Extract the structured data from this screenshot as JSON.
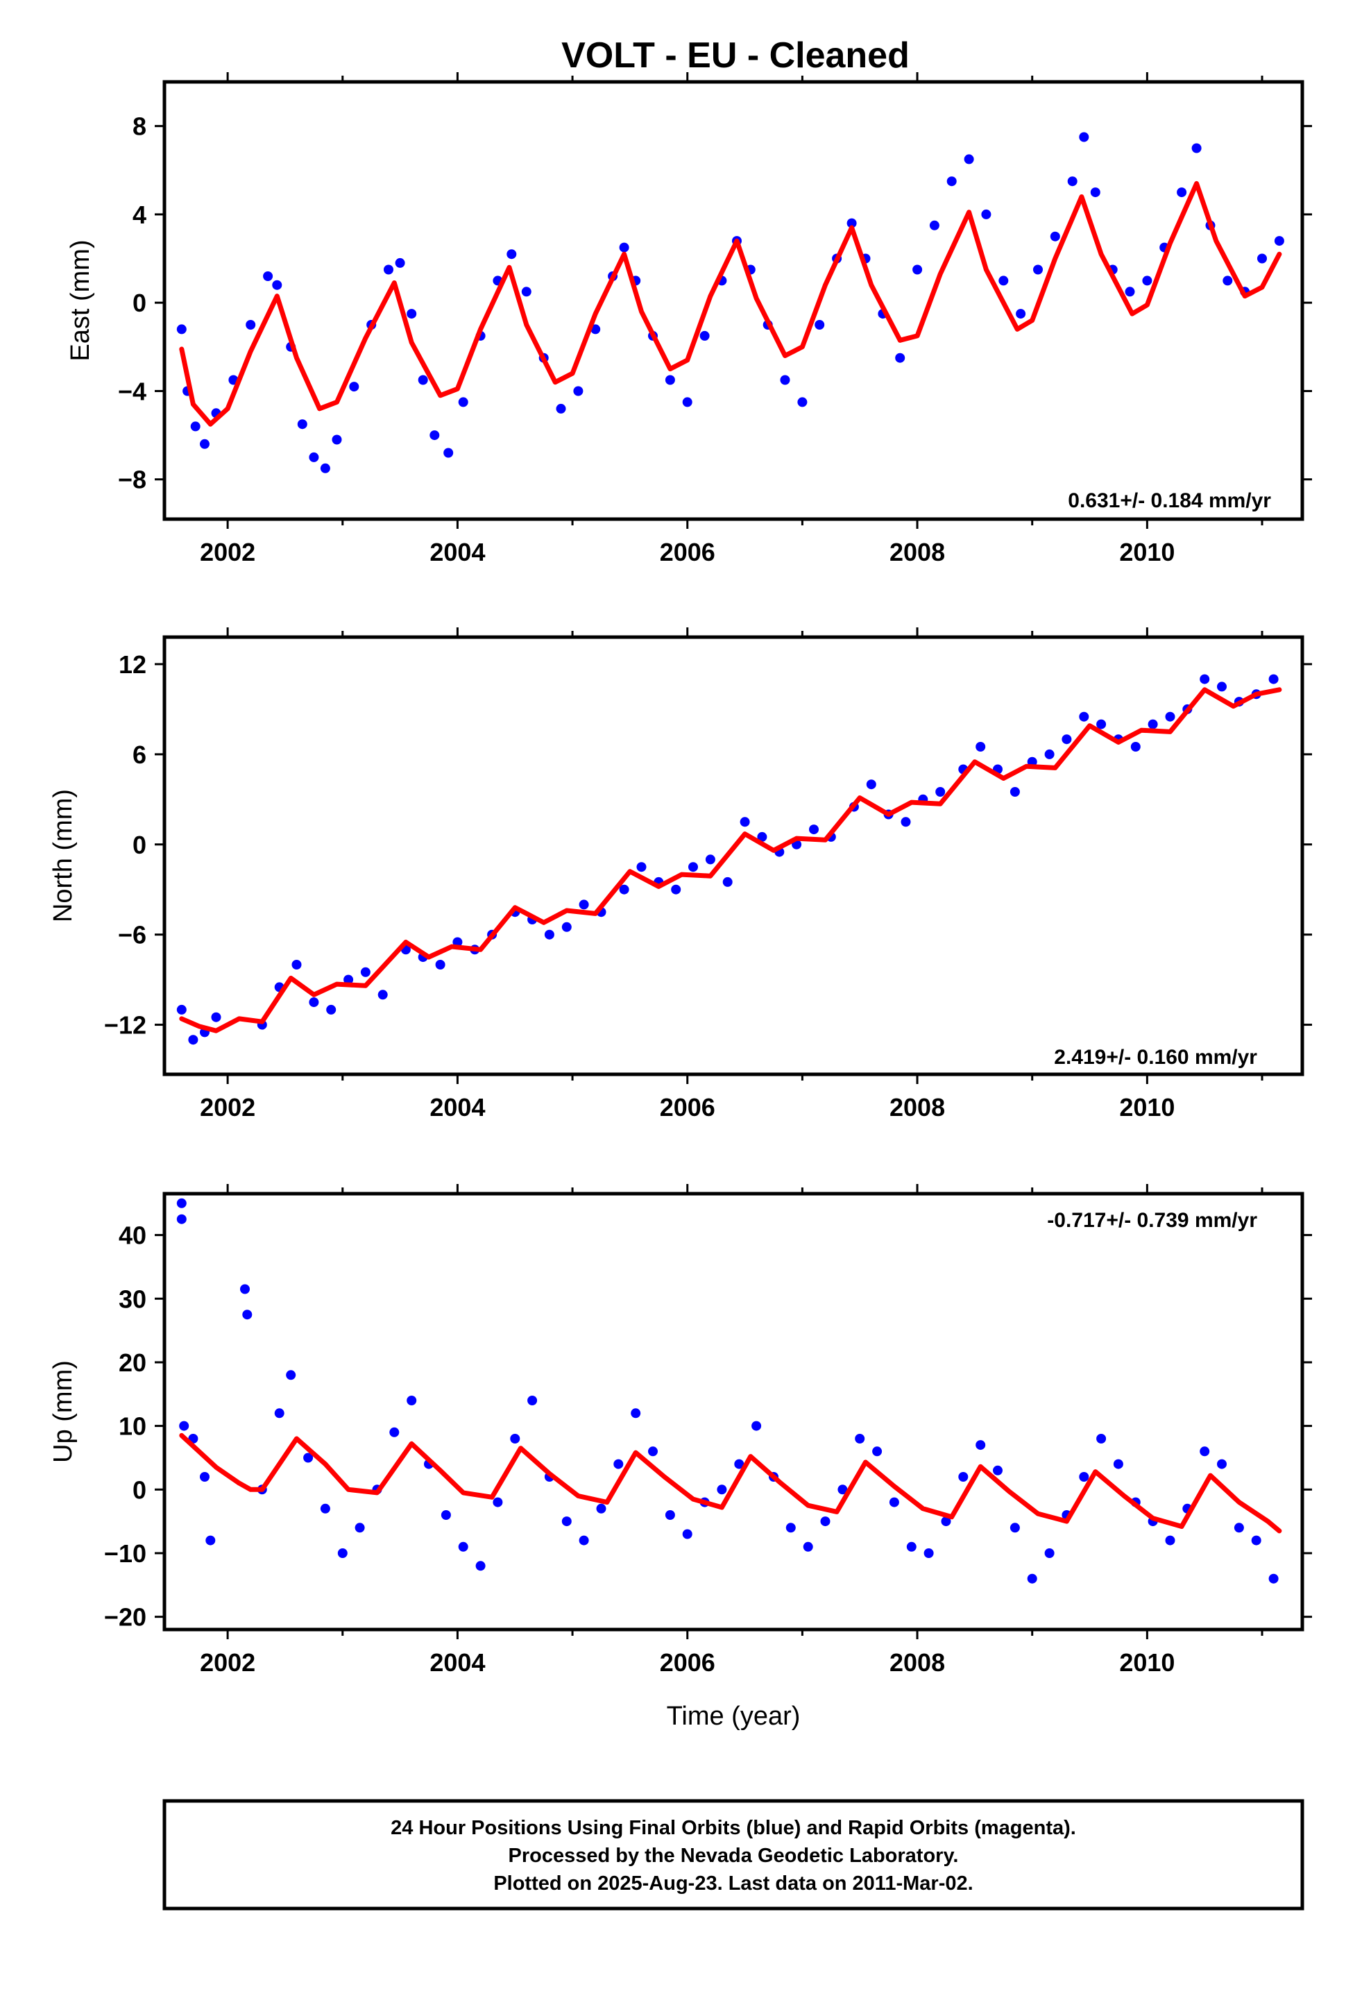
{
  "title": "VOLT  - EU - Cleaned",
  "colors": {
    "points": "#0000ff",
    "model": "#ff0000",
    "frame": "#000000"
  },
  "x_axis": {
    "label": "Time (year)",
    "ticks": [
      2002,
      2004,
      2006,
      2008,
      2010
    ],
    "xlim": [
      2001.45,
      2011.35
    ]
  },
  "chart_data": [
    {
      "type": "scatter",
      "panel": "east",
      "ylabel": "East (mm)",
      "yticks": [
        "8",
        "4",
        "0",
        "−4",
        "−8"
      ],
      "ytick_values": [
        8,
        4,
        0,
        -4,
        -8
      ],
      "ylim": [
        -9.8,
        10.0
      ],
      "rate_label": "0.631+/- 0.184 mm/yr",
      "rate_position": "bottom-right",
      "series": [
        {
          "kind": "model",
          "x": [
            2001.6,
            2001.7,
            2001.85,
            2002.0,
            2002.2,
            2002.43,
            2002.6,
            2002.8,
            2002.95,
            2003.2,
            2003.45,
            2003.6,
            2003.85,
            2004.0,
            2004.2,
            2004.45,
            2004.6,
            2004.85,
            2005.0,
            2005.2,
            2005.45,
            2005.6,
            2005.85,
            2006.0,
            2006.2,
            2006.43,
            2006.6,
            2006.85,
            2007.0,
            2007.2,
            2007.43,
            2007.6,
            2007.85,
            2008.0,
            2008.2,
            2008.45,
            2008.6,
            2008.87,
            2009.0,
            2009.2,
            2009.43,
            2009.6,
            2009.87,
            2010.0,
            2010.2,
            2010.43,
            2010.6,
            2010.85,
            2011.0,
            2011.15
          ],
          "y": [
            -2.1,
            -4.6,
            -5.5,
            -4.8,
            -2.2,
            0.3,
            -2.5,
            -4.8,
            -4.5,
            -1.6,
            0.9,
            -1.8,
            -4.2,
            -3.9,
            -1.2,
            1.6,
            -1.0,
            -3.6,
            -3.2,
            -0.5,
            2.2,
            -0.4,
            -3.0,
            -2.6,
            0.3,
            2.8,
            0.2,
            -2.4,
            -2.0,
            0.8,
            3.4,
            0.8,
            -1.7,
            -1.5,
            1.3,
            4.1,
            1.5,
            -1.2,
            -0.8,
            2.0,
            4.8,
            2.2,
            -0.5,
            -0.1,
            2.7,
            5.4,
            2.8,
            0.3,
            0.7,
            2.2
          ]
        },
        {
          "kind": "observations",
          "x": [
            2001.6,
            2001.65,
            2001.72,
            2001.8,
            2001.9,
            2002.05,
            2002.2,
            2002.35,
            2002.43,
            2002.55,
            2002.65,
            2002.75,
            2002.85,
            2002.95,
            2003.1,
            2003.25,
            2003.4,
            2003.5,
            2003.6,
            2003.7,
            2003.8,
            2003.92,
            2004.05,
            2004.2,
            2004.35,
            2004.47,
            2004.6,
            2004.75,
            2004.9,
            2005.05,
            2005.2,
            2005.35,
            2005.45,
            2005.55,
            2005.7,
            2005.85,
            2006.0,
            2006.15,
            2006.3,
            2006.43,
            2006.55,
            2006.7,
            2006.85,
            2007.0,
            2007.15,
            2007.3,
            2007.43,
            2007.55,
            2007.7,
            2007.85,
            2008.0,
            2008.15,
            2008.3,
            2008.45,
            2008.6,
            2008.75,
            2008.9,
            2009.05,
            2009.2,
            2009.35,
            2009.45,
            2009.55,
            2009.7,
            2009.85,
            2010.0,
            2010.15,
            2010.3,
            2010.43,
            2010.55,
            2010.7,
            2010.85,
            2011.0,
            2011.15
          ],
          "y": [
            -1.2,
            -4.0,
            -5.6,
            -6.4,
            -5.0,
            -3.5,
            -1.0,
            1.2,
            0.8,
            -2.0,
            -5.5,
            -7.0,
            -7.5,
            -6.2,
            -3.8,
            -1.0,
            1.5,
            1.8,
            -0.5,
            -3.5,
            -6.0,
            -6.8,
            -4.5,
            -1.5,
            1.0,
            2.2,
            0.5,
            -2.5,
            -4.8,
            -4.0,
            -1.2,
            1.2,
            2.5,
            1.0,
            -1.5,
            -3.5,
            -4.5,
            -1.5,
            1.0,
            2.8,
            1.5,
            -1.0,
            -3.5,
            -4.5,
            -1.0,
            2.0,
            3.6,
            2.0,
            -0.5,
            -2.5,
            1.5,
            3.5,
            5.5,
            6.5,
            4.0,
            1.0,
            -0.5,
            1.5,
            3.0,
            5.5,
            7.5,
            5.0,
            1.5,
            0.5,
            1.0,
            2.5,
            5.0,
            7.0,
            3.5,
            1.0,
            0.5,
            2.0,
            2.8
          ]
        }
      ]
    },
    {
      "type": "scatter",
      "panel": "north",
      "ylabel": "North (mm)",
      "yticks": [
        "12",
        "6",
        "0",
        "−6",
        "−12"
      ],
      "ytick_values": [
        12,
        6,
        0,
        -6,
        -12
      ],
      "ylim": [
        -15.3,
        13.8
      ],
      "rate_label": "2.419+/- 0.160 mm/yr",
      "rate_position": "bottom-right",
      "series": [
        {
          "kind": "model",
          "x": [
            2001.6,
            2001.75,
            2001.9,
            2002.1,
            2002.3,
            2002.55,
            2002.75,
            2002.95,
            2003.2,
            2003.55,
            2003.75,
            2003.95,
            2004.2,
            2004.5,
            2004.75,
            2004.95,
            2005.2,
            2005.5,
            2005.75,
            2005.95,
            2006.2,
            2006.5,
            2006.75,
            2006.95,
            2007.2,
            2007.5,
            2007.75,
            2007.95,
            2008.2,
            2008.5,
            2008.75,
            2008.95,
            2009.2,
            2009.5,
            2009.75,
            2009.95,
            2010.2,
            2010.5,
            2010.75,
            2010.95,
            2011.15
          ],
          "y": [
            -11.6,
            -12.1,
            -12.4,
            -11.6,
            -11.8,
            -8.9,
            -10.0,
            -9.3,
            -9.4,
            -6.5,
            -7.5,
            -6.8,
            -7.0,
            -4.2,
            -5.2,
            -4.4,
            -4.6,
            -1.8,
            -2.8,
            -2.0,
            -2.1,
            0.7,
            -0.4,
            0.4,
            0.3,
            3.1,
            2.0,
            2.8,
            2.7,
            5.5,
            4.4,
            5.2,
            5.1,
            7.9,
            6.8,
            7.6,
            7.5,
            10.3,
            9.2,
            10.0,
            10.3
          ]
        },
        {
          "kind": "observations",
          "x": [
            2001.6,
            2001.7,
            2001.8,
            2001.9,
            2002.3,
            2002.45,
            2002.6,
            2002.75,
            2002.9,
            2003.05,
            2003.2,
            2003.35,
            2003.55,
            2003.7,
            2003.85,
            2004.0,
            2004.15,
            2004.3,
            2004.5,
            2004.65,
            2004.8,
            2004.95,
            2005.1,
            2005.25,
            2005.45,
            2005.6,
            2005.75,
            2005.9,
            2006.05,
            2006.2,
            2006.35,
            2006.5,
            2006.65,
            2006.8,
            2006.95,
            2007.1,
            2007.25,
            2007.45,
            2007.6,
            2007.75,
            2007.9,
            2008.05,
            2008.2,
            2008.4,
            2008.55,
            2008.7,
            2008.85,
            2009.0,
            2009.15,
            2009.3,
            2009.45,
            2009.6,
            2009.75,
            2009.9,
            2010.05,
            2010.2,
            2010.35,
            2010.5,
            2010.65,
            2010.8,
            2010.95,
            2011.1
          ],
          "y": [
            -11.0,
            -13.0,
            -12.5,
            -11.5,
            -12.0,
            -9.5,
            -8.0,
            -10.5,
            -11.0,
            -9.0,
            -8.5,
            -10.0,
            -7.0,
            -7.5,
            -8.0,
            -6.5,
            -7.0,
            -6.0,
            -4.5,
            -5.0,
            -6.0,
            -5.5,
            -4.0,
            -4.5,
            -3.0,
            -1.5,
            -2.5,
            -3.0,
            -1.5,
            -1.0,
            -2.5,
            1.5,
            0.5,
            -0.5,
            0.0,
            1.0,
            0.5,
            2.5,
            4.0,
            2.0,
            1.5,
            3.0,
            3.5,
            5.0,
            6.5,
            5.0,
            3.5,
            5.5,
            6.0,
            7.0,
            8.5,
            8.0,
            7.0,
            6.5,
            8.0,
            8.5,
            9.0,
            11.0,
            10.5,
            9.5,
            10.0,
            11.0
          ]
        }
      ]
    },
    {
      "type": "scatter",
      "panel": "up",
      "ylabel": "Up (mm)",
      "yticks": [
        "40",
        "30",
        "20",
        "10",
        "0",
        "−10",
        "−20"
      ],
      "ytick_values": [
        40,
        30,
        20,
        10,
        0,
        -10,
        -20
      ],
      "ylim": [
        -22,
        46.5
      ],
      "rate_label": "-0.717+/- 0.739 mm/yr",
      "rate_position": "top-right",
      "series": [
        {
          "kind": "model",
          "x": [
            2001.6,
            2001.75,
            2001.9,
            2002.1,
            2002.2,
            2002.3,
            2002.6,
            2002.85,
            2003.05,
            2003.3,
            2003.6,
            2003.85,
            2004.05,
            2004.3,
            2004.55,
            2004.8,
            2005.05,
            2005.3,
            2005.55,
            2005.8,
            2006.05,
            2006.3,
            2006.55,
            2006.8,
            2007.05,
            2007.3,
            2007.55,
            2007.8,
            2008.05,
            2008.3,
            2008.55,
            2008.8,
            2009.05,
            2009.3,
            2009.55,
            2009.8,
            2010.05,
            2010.3,
            2010.55,
            2010.8,
            2011.05,
            2011.15
          ],
          "y": [
            8.5,
            6.0,
            3.5,
            1.0,
            0.0,
            0.0,
            8.0,
            4.0,
            0.0,
            -0.5,
            7.2,
            3.0,
            -0.5,
            -1.2,
            6.5,
            2.5,
            -1.0,
            -2.0,
            5.8,
            2.0,
            -1.5,
            -2.8,
            5.2,
            1.2,
            -2.5,
            -3.5,
            4.3,
            0.5,
            -3.0,
            -4.3,
            3.6,
            -0.3,
            -3.8,
            -5.0,
            2.8,
            -1.0,
            -4.5,
            -5.8,
            2.2,
            -2.0,
            -5.0,
            -6.5
          ]
        },
        {
          "kind": "observations",
          "x": [
            2001.6,
            2001.6,
            2001.62,
            2001.7,
            2001.8,
            2001.85,
            2002.15,
            2002.17,
            2002.3,
            2002.45,
            2002.55,
            2002.7,
            2002.85,
            2003.0,
            2003.15,
            2003.3,
            2003.45,
            2003.6,
            2003.75,
            2003.9,
            2004.05,
            2004.2,
            2004.35,
            2004.5,
            2004.65,
            2004.8,
            2004.95,
            2005.1,
            2005.25,
            2005.4,
            2005.55,
            2005.7,
            2005.85,
            2006.0,
            2006.15,
            2006.3,
            2006.45,
            2006.6,
            2006.75,
            2006.9,
            2007.05,
            2007.2,
            2007.35,
            2007.5,
            2007.65,
            2007.8,
            2007.95,
            2008.1,
            2008.25,
            2008.4,
            2008.55,
            2008.7,
            2008.85,
            2009.0,
            2009.15,
            2009.3,
            2009.45,
            2009.6,
            2009.75,
            2009.9,
            2010.05,
            2010.2,
            2010.35,
            2010.5,
            2010.65,
            2010.8,
            2010.95,
            2011.1
          ],
          "y": [
            45.0,
            42.5,
            10.0,
            8.0,
            2.0,
            -8.0,
            31.5,
            27.5,
            0.0,
            12.0,
            18.0,
            5.0,
            -3.0,
            -10.0,
            -6.0,
            0.0,
            9.0,
            14.0,
            4.0,
            -4.0,
            -9.0,
            -12.0,
            -2.0,
            8.0,
            14.0,
            2.0,
            -5.0,
            -8.0,
            -3.0,
            4.0,
            12.0,
            6.0,
            -4.0,
            -7.0,
            -2.0,
            0.0,
            4.0,
            10.0,
            2.0,
            -6.0,
            -9.0,
            -5.0,
            0.0,
            8.0,
            6.0,
            -2.0,
            -9.0,
            -10.0,
            -5.0,
            2.0,
            7.0,
            3.0,
            -6.0,
            -14.0,
            -10.0,
            -4.0,
            2.0,
            8.0,
            4.0,
            -2.0,
            -5.0,
            -8.0,
            -3.0,
            6.0,
            4.0,
            -6.0,
            -8.0,
            -14.0
          ]
        }
      ]
    }
  ],
  "footer": {
    "line1": "24 Hour Positions Using Final Orbits (blue) and Rapid Orbits (magenta).",
    "line2": "Processed by the Nevada Geodetic Laboratory.",
    "line3": "Plotted on 2025-Aug-23. Last data on 2011-Mar-02."
  }
}
